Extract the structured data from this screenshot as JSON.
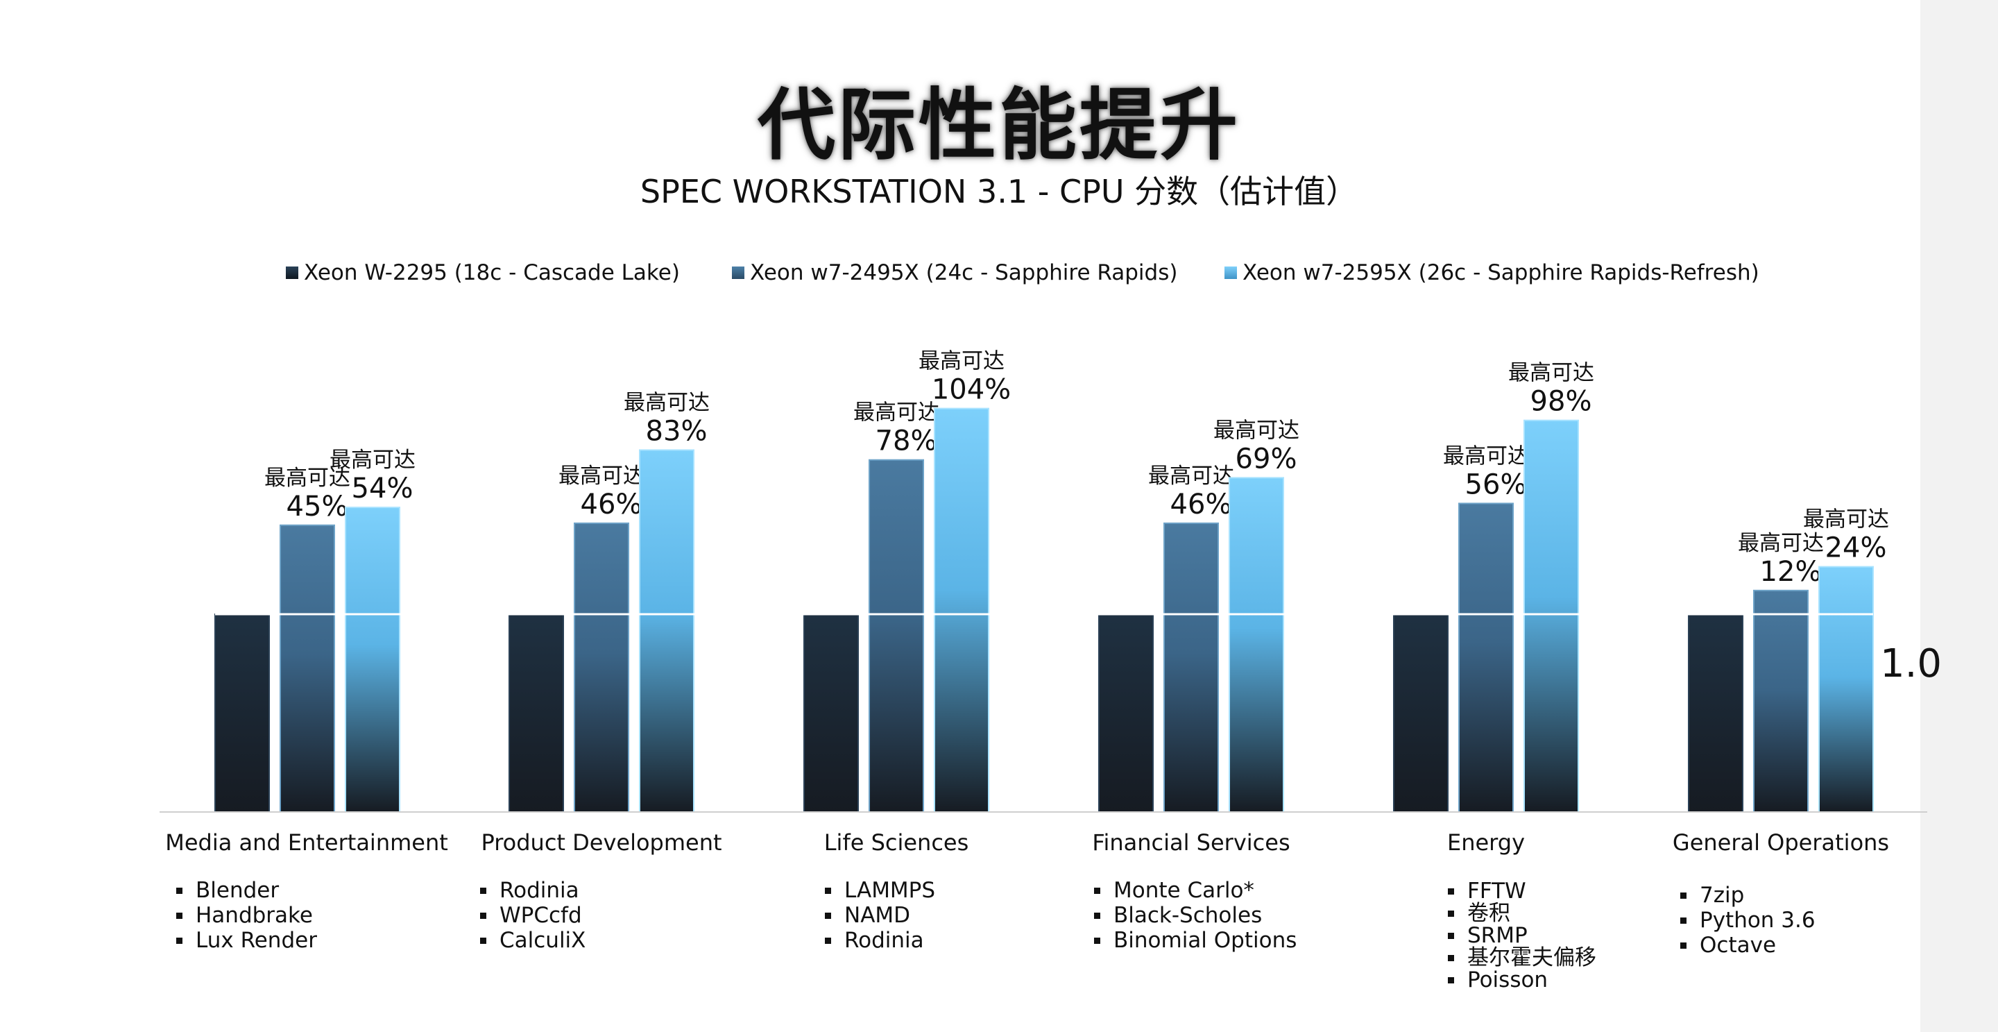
{
  "title": "代际性能提升",
  "subtitle": "SPEC WORKSTATION 3.1 - CPU 分数（估计值）",
  "baseline_label": "1.0",
  "legend": [
    "Xeon W-2295 (18c - Cascade Lake)",
    "Xeon w7-2495X (24c - Sapphire Rapids)",
    "Xeon w7-2595X (26c - Sapphire Rapids-Refresh)"
  ],
  "colors": {
    "series1": "#1c2b3a",
    "series2": "#3f6e93",
    "series3": "#6cc6f7",
    "dark_bottom": "#161b22"
  },
  "chart_data": {
    "type": "bar",
    "categories": [
      "Media and Entertainment",
      "Product Development",
      "Life Sciences",
      "Financial Services",
      "Energy",
      "General Operations"
    ],
    "series": [
      {
        "name": "Xeon W-2295 (18c - Cascade Lake)",
        "values": [
          1.0,
          1.0,
          1.0,
          1.0,
          1.0,
          1.0
        ]
      },
      {
        "name": "Xeon w7-2495X (24c - Sapphire Rapids)",
        "values": [
          1.45,
          1.46,
          1.78,
          1.46,
          1.56,
          1.12
        ]
      },
      {
        "name": "Xeon w7-2595X (26c - Sapphire Rapids-Refresh)",
        "values": [
          1.54,
          1.83,
          2.04,
          1.69,
          1.98,
          1.24
        ]
      }
    ],
    "annotations": [
      [
        "",
        "最高可达 45%",
        "最高可达 54%"
      ],
      [
        "",
        "最高可达 46%",
        "最高可达 83%"
      ],
      [
        "",
        "最高可达 78%",
        "最高可达 104%"
      ],
      [
        "",
        "最高可达 46%",
        "最高可达 69%"
      ],
      [
        "",
        "最高可达 56%",
        "最高可达 98%"
      ],
      [
        "",
        "最高可达 12%",
        "最高可达 24%"
      ]
    ],
    "ylim": [
      0,
      2.1
    ],
    "baseline": 1.0,
    "legend_position": "top"
  },
  "benchmarks": [
    [
      "Blender",
      "Handbrake",
      "Lux Render"
    ],
    [
      "Rodinia",
      "WPCcfd",
      "CalculiX"
    ],
    [
      "LAMMPS",
      "NAMD",
      "Rodinia"
    ],
    [
      "Monte Carlo*",
      "Black-Scholes",
      "Binomial Options"
    ],
    [
      "FFTW",
      "卷积",
      "SRMP",
      "基尔霍夫偏移",
      "Poisson"
    ],
    [
      "7zip",
      "Python 3.6",
      "Octave"
    ]
  ]
}
